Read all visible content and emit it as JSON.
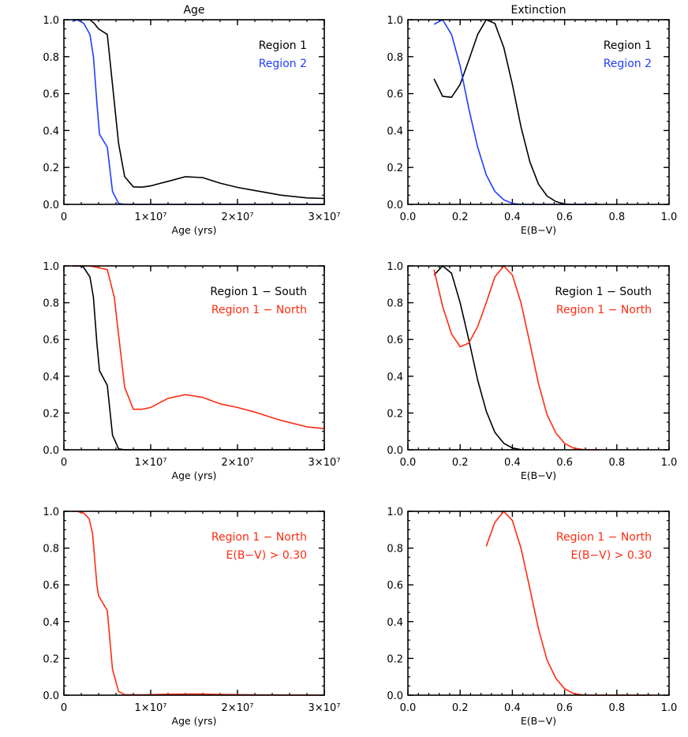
{
  "colors": {
    "black": "#000000",
    "blue": "#1f3dff",
    "red": "#ff2b10"
  },
  "chart_data": [
    {
      "type": "line",
      "title": "Age",
      "xlabel": "Age (yrs)",
      "ylabel": "",
      "xlim": [
        0,
        30000000
      ],
      "ylim": [
        0,
        1
      ],
      "xticks": [
        0,
        10000000,
        20000000,
        30000000
      ],
      "xtick_labels": [
        "0",
        "1×10⁷",
        "2×10⁷",
        "3×10⁷"
      ],
      "yticks": [
        0,
        0.2,
        0.4,
        0.6,
        0.8,
        1.0
      ],
      "ytick_labels": [
        "0.0",
        "0.2",
        "0.4",
        "0.6",
        "0.8",
        "1.0"
      ],
      "legend": "top-right",
      "series": [
        {
          "name": "Region 1",
          "color": "black",
          "x": [
            1000000.0,
            2000000.0,
            3000000.0,
            3500000.0,
            4000000.0,
            5000000.0,
            6300000.0,
            7000000.0,
            8000000.0,
            9000000.0,
            10000000.0,
            11000000.0,
            12000000.0,
            14000000.0,
            16000000.0,
            18000000.0,
            20000000.0,
            22000000.0,
            25000000.0,
            28000000.0,
            30000000.0
          ],
          "y": [
            1.0,
            1.0,
            1.0,
            0.98,
            0.95,
            0.92,
            0.33,
            0.15,
            0.095,
            0.093,
            0.1,
            0.113,
            0.125,
            0.15,
            0.145,
            0.115,
            0.092,
            0.075,
            0.05,
            0.035,
            0.032
          ]
        },
        {
          "name": "Region 2",
          "color": "blue",
          "x": [
            1000000.0,
            1500000.0,
            2300000.0,
            3000000.0,
            3400000.0,
            3800000.0,
            4100000.0,
            5000000.0,
            5600000.0,
            6300000.0,
            7000000.0,
            10000000.0,
            20000000.0,
            30000000.0
          ],
          "y": [
            0.99,
            1.0,
            0.98,
            0.92,
            0.8,
            0.55,
            0.38,
            0.31,
            0.07,
            0.005,
            0,
            0,
            0,
            0
          ]
        }
      ]
    },
    {
      "type": "line",
      "title": "Extinction",
      "xlabel": "E(B−V)",
      "ylabel": "",
      "xlim": [
        0,
        1
      ],
      "ylim": [
        0,
        1
      ],
      "xticks": [
        0,
        0.2,
        0.4,
        0.6,
        0.8,
        1.0
      ],
      "xtick_labels": [
        "0.0",
        "0.2",
        "0.4",
        "0.6",
        "0.8",
        "1.0"
      ],
      "yticks": [
        0,
        0.2,
        0.4,
        0.6,
        0.8,
        1.0
      ],
      "ytick_labels": [
        "0.0",
        "0.2",
        "0.4",
        "0.6",
        "0.8",
        "1.0"
      ],
      "legend": "top-right",
      "series": [
        {
          "name": "Region 1",
          "color": "black",
          "x": [
            0.1,
            0.133,
            0.167,
            0.2,
            0.233,
            0.267,
            0.3,
            0.333,
            0.367,
            0.4,
            0.433,
            0.467,
            0.5,
            0.533,
            0.567,
            0.6,
            0.633,
            0.667,
            0.7,
            0.733
          ],
          "y": [
            0.68,
            0.585,
            0.58,
            0.65,
            0.78,
            0.92,
            1.0,
            0.98,
            0.85,
            0.65,
            0.42,
            0.23,
            0.11,
            0.045,
            0.015,
            0.002,
            0,
            0,
            0,
            0
          ]
        },
        {
          "name": "Region 2",
          "color": "blue",
          "x": [
            0.1,
            0.133,
            0.167,
            0.2,
            0.233,
            0.267,
            0.3,
            0.333,
            0.367,
            0.4,
            0.433,
            0.467,
            0.5,
            0.6,
            0.7,
            0.733
          ],
          "y": [
            0.975,
            1.0,
            0.92,
            0.75,
            0.52,
            0.31,
            0.16,
            0.07,
            0.025,
            0.005,
            0,
            0,
            0,
            0,
            0,
            0
          ]
        }
      ]
    },
    {
      "type": "line",
      "title": "",
      "xlabel": "Age (yrs)",
      "ylabel": "",
      "xlim": [
        0,
        30000000
      ],
      "ylim": [
        0,
        1
      ],
      "xticks": [
        0,
        10000000,
        20000000,
        30000000
      ],
      "xtick_labels": [
        "0",
        "1×10⁷",
        "2×10⁷",
        "3×10⁷"
      ],
      "yticks": [
        0,
        0.2,
        0.4,
        0.6,
        0.8,
        1.0
      ],
      "ytick_labels": [
        "0.0",
        "0.2",
        "0.4",
        "0.6",
        "0.8",
        "1.0"
      ],
      "legend": "top-right",
      "series": [
        {
          "name": "Region 1 − South",
          "color": "black",
          "x": [
            1000000.0,
            2000000.0,
            2300000.0,
            3000000.0,
            3400000.0,
            3800000.0,
            4100000.0,
            5000000.0,
            5600000.0,
            6300000.0,
            7000000.0,
            10000000.0,
            20000000.0,
            30000000.0
          ],
          "y": [
            1.0,
            1.0,
            0.99,
            0.94,
            0.83,
            0.58,
            0.43,
            0.35,
            0.08,
            0.005,
            0,
            0,
            0,
            0
          ]
        },
        {
          "name": "Region 1 − North",
          "color": "red",
          "x": [
            1000000.0,
            2000000.0,
            3000000.0,
            4000000.0,
            5000000.0,
            5800000.0,
            7000000.0,
            8000000.0,
            9000000.0,
            10000000.0,
            11000000.0,
            12000000.0,
            14000000.0,
            16000000.0,
            18000000.0,
            20000000.0,
            22000000.0,
            25000000.0,
            28000000.0,
            30000000.0
          ],
          "y": [
            1.0,
            1.0,
            1.0,
            0.99,
            0.98,
            0.83,
            0.34,
            0.22,
            0.22,
            0.23,
            0.255,
            0.28,
            0.3,
            0.285,
            0.25,
            0.23,
            0.205,
            0.16,
            0.125,
            0.115
          ]
        }
      ]
    },
    {
      "type": "line",
      "title": "",
      "xlabel": "E(B−V)",
      "ylabel": "",
      "xlim": [
        0,
        1
      ],
      "ylim": [
        0,
        1
      ],
      "xticks": [
        0,
        0.2,
        0.4,
        0.6,
        0.8,
        1.0
      ],
      "xtick_labels": [
        "0.0",
        "0.2",
        "0.4",
        "0.6",
        "0.8",
        "1.0"
      ],
      "yticks": [
        0,
        0.2,
        0.4,
        0.6,
        0.8,
        1.0
      ],
      "ytick_labels": [
        "0.0",
        "0.2",
        "0.4",
        "0.6",
        "0.8",
        "1.0"
      ],
      "legend": "top-right",
      "series": [
        {
          "name": "Region 1 − South",
          "color": "black",
          "x": [
            0.1,
            0.133,
            0.167,
            0.2,
            0.233,
            0.267,
            0.3,
            0.333,
            0.367,
            0.4,
            0.433,
            0.467
          ],
          "y": [
            0.95,
            1.0,
            0.96,
            0.8,
            0.6,
            0.38,
            0.21,
            0.095,
            0.035,
            0.01,
            0.001,
            0
          ]
        },
        {
          "name": "Region 1 − North",
          "color": "red",
          "x": [
            0.1,
            0.133,
            0.167,
            0.2,
            0.233,
            0.267,
            0.3,
            0.333,
            0.367,
            0.4,
            0.433,
            0.467,
            0.5,
            0.533,
            0.567,
            0.6,
            0.633,
            0.667,
            0.7,
            0.733
          ],
          "y": [
            0.98,
            0.78,
            0.63,
            0.56,
            0.58,
            0.67,
            0.8,
            0.94,
            1.0,
            0.95,
            0.8,
            0.58,
            0.36,
            0.19,
            0.09,
            0.035,
            0.01,
            0.002,
            0,
            0
          ]
        }
      ]
    },
    {
      "type": "line",
      "title": "",
      "xlabel": "Age (yrs)",
      "ylabel": "",
      "xlim": [
        0,
        30000000
      ],
      "ylim": [
        0,
        1
      ],
      "xticks": [
        0,
        10000000,
        20000000,
        30000000
      ],
      "xtick_labels": [
        "0",
        "1×10⁷",
        "2×10⁷",
        "3×10⁷"
      ],
      "yticks": [
        0,
        0.2,
        0.4,
        0.6,
        0.8,
        1.0
      ],
      "ytick_labels": [
        "0.0",
        "0.2",
        "0.4",
        "0.6",
        "0.8",
        "1.0"
      ],
      "legend": "top-right",
      "legend_lines": [
        "Region 1 − North",
        "E(B−V) > 0.30"
      ],
      "series": [
        {
          "name": "Region 1 − North",
          "color": "red",
          "x": [
            1000000.0,
            1500000.0,
            2300000.0,
            2900000.0,
            3300000.0,
            3800000.0,
            4000000.0,
            5000000.0,
            5600000.0,
            6300000.0,
            7000000.0,
            9000000.0,
            12000000.0,
            15000000.0,
            18000000.0,
            22000000.0,
            30000000.0
          ],
          "y": [
            1.0,
            1.0,
            0.99,
            0.96,
            0.88,
            0.6,
            0.54,
            0.46,
            0.14,
            0.02,
            0.003,
            0.002,
            0.005,
            0.007,
            0.004,
            0.002,
            0
          ]
        }
      ]
    },
    {
      "type": "line",
      "title": "",
      "xlabel": "E(B−V)",
      "ylabel": "",
      "xlim": [
        0,
        1
      ],
      "ylim": [
        0,
        1
      ],
      "xticks": [
        0,
        0.2,
        0.4,
        0.6,
        0.8,
        1.0
      ],
      "xtick_labels": [
        "0.0",
        "0.2",
        "0.4",
        "0.6",
        "0.8",
        "1.0"
      ],
      "yticks": [
        0,
        0.2,
        0.4,
        0.6,
        0.8,
        1.0
      ],
      "ytick_labels": [
        "0.0",
        "0.2",
        "0.4",
        "0.6",
        "0.8",
        "1.0"
      ],
      "legend": "top-right",
      "legend_lines": [
        "Region 1 − North",
        "E(B−V) > 0.30"
      ],
      "series": [
        {
          "name": "Region 1 − North",
          "color": "red",
          "x": [
            0.3,
            0.333,
            0.367,
            0.4,
            0.433,
            0.467,
            0.5,
            0.533,
            0.567,
            0.6,
            0.633,
            0.667,
            0.7,
            0.8,
            0.933
          ],
          "y": [
            0.81,
            0.94,
            1.0,
            0.95,
            0.8,
            0.58,
            0.36,
            0.19,
            0.09,
            0.035,
            0.01,
            0.002,
            0,
            0,
            0
          ]
        }
      ]
    }
  ]
}
